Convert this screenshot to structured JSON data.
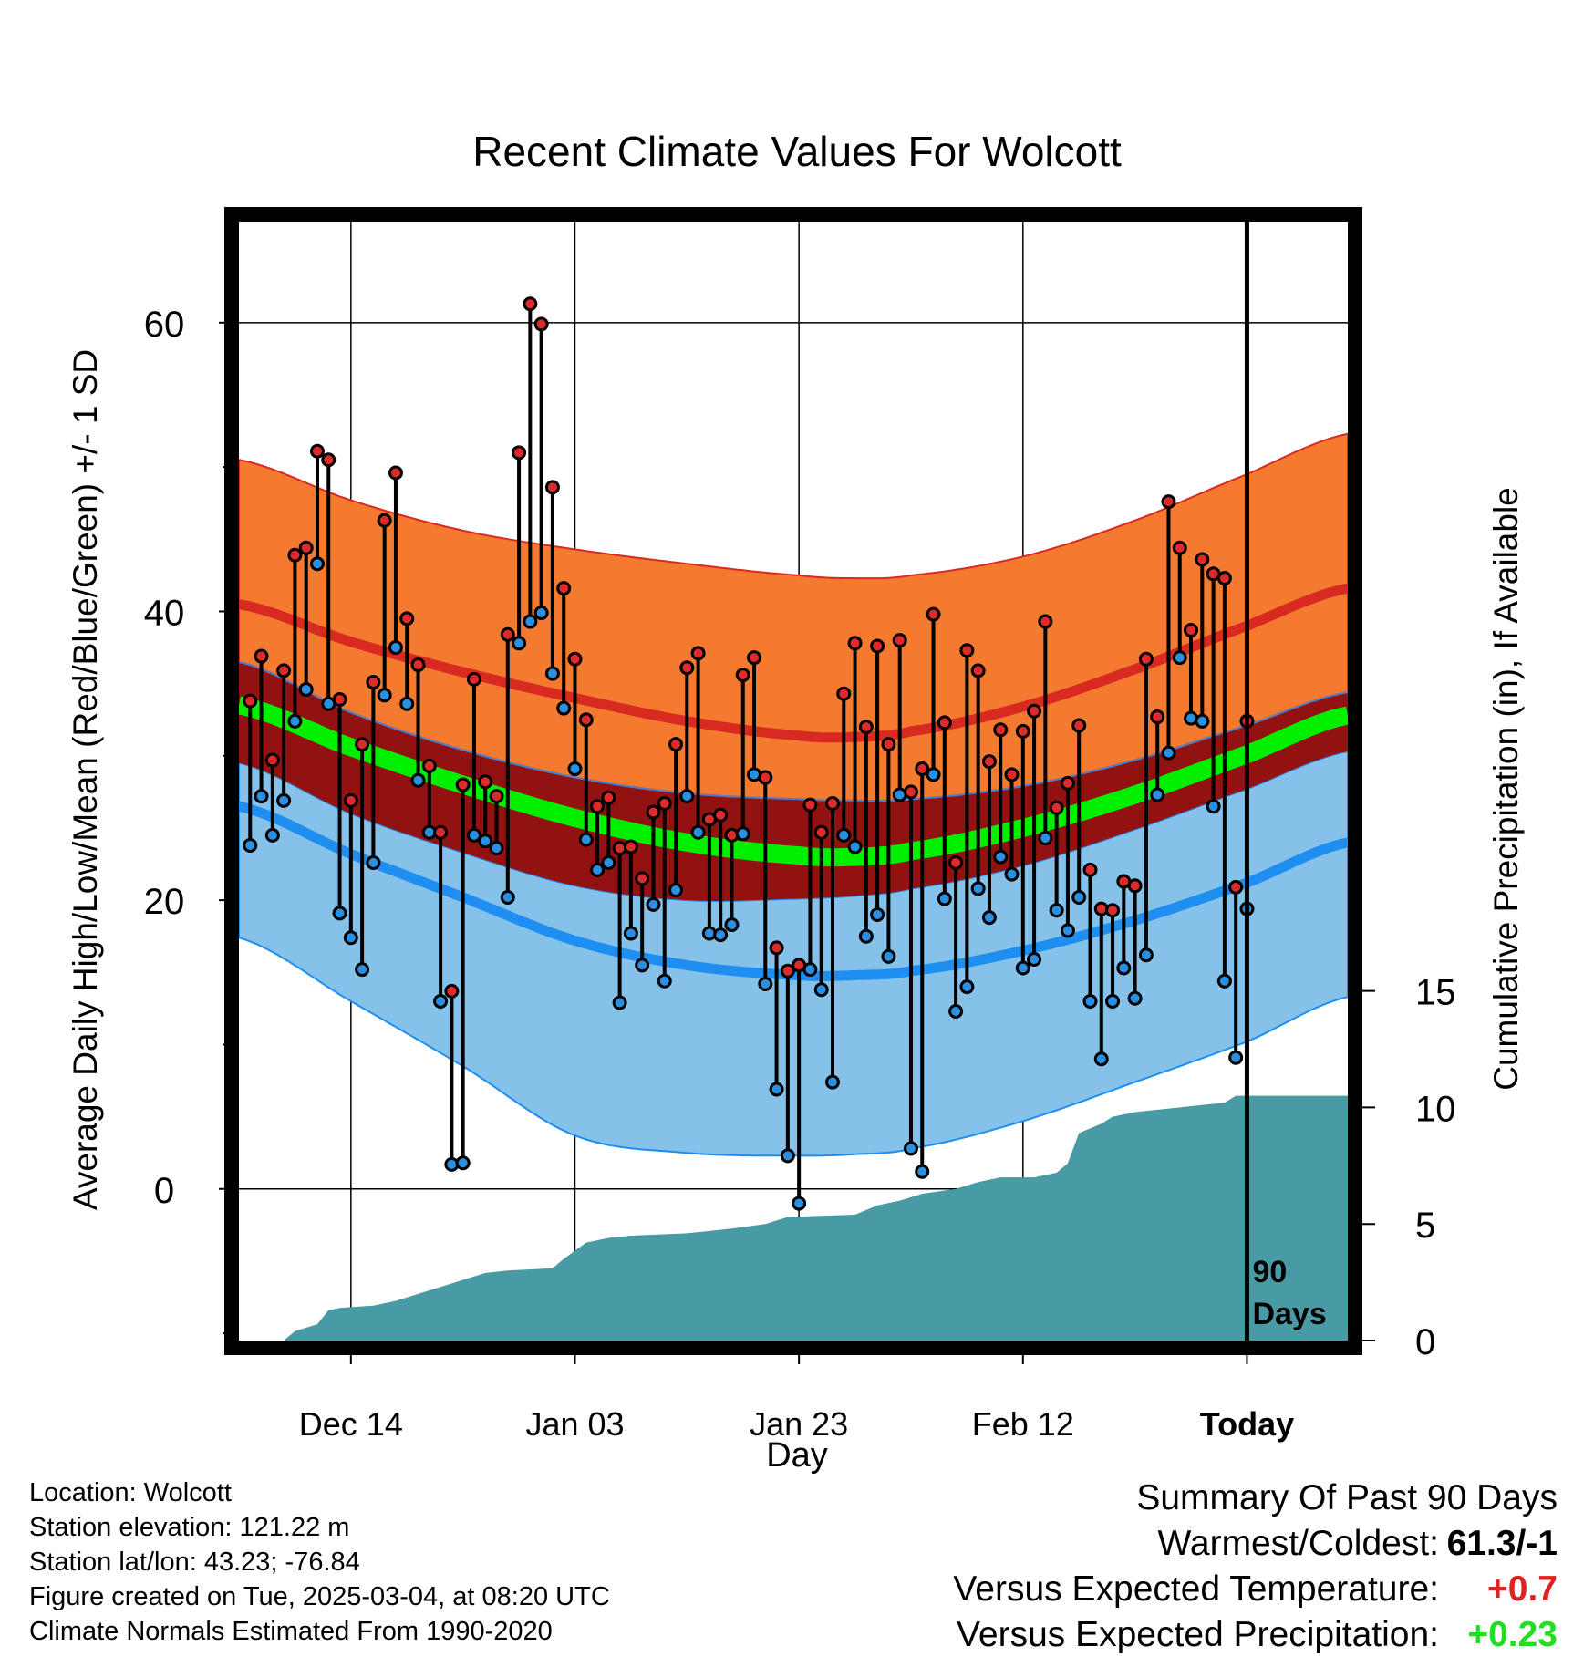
{
  "chart_data": {
    "type": "line",
    "title": "Recent Climate Values For Wolcott",
    "xlabel": "Day",
    "ylabel": "Average Daily High/Low/Mean (Red/Blue/Green) +/- 1 SD",
    "y2label": "Cumulative Precipitation (in), If Available",
    "x_range_days": [
      -90,
      9
    ],
    "ylim": [
      -10.5,
      67
    ],
    "y2lim": [
      0,
      48
    ],
    "x_ticks": [
      {
        "day": -80,
        "label": "Dec 14"
      },
      {
        "day": -60,
        "label": "Jan 03"
      },
      {
        "day": -40,
        "label": "Jan 23"
      },
      {
        "day": -20,
        "label": "Feb 12"
      },
      {
        "day": 0,
        "label": "Today"
      }
    ],
    "y_ticks": [
      0,
      20,
      40,
      60
    ],
    "y_minor_ticks": [
      -10,
      10,
      30,
      50
    ],
    "y2_ticks": [
      0,
      5,
      10,
      15
    ],
    "today_label": "90\nDays",
    "colors": {
      "high_obs": "#dd2a2a",
      "low_obs": "#2a8fe0",
      "high_band": "#f47a30",
      "high_line": "#d92a22",
      "low_band": "#85c1e8",
      "low_line": "#1e8ff0",
      "mean_band": "#921212",
      "mean_line": "#00ee00",
      "precip": "#489aa4"
    },
    "normals": {
      "day": [
        -90,
        -80,
        -70,
        -60,
        -50,
        -40,
        -35,
        -30,
        -20,
        -10,
        0,
        9
      ],
      "high_mean": [
        40.5,
        37.9,
        35.8,
        34.0,
        32.4,
        31.4,
        31.3,
        31.7,
        33.4,
        36.0,
        39.0,
        41.6
      ],
      "high_upper": [
        50.5,
        47.7,
        45.6,
        44.3,
        43.3,
        42.5,
        42.3,
        42.5,
        43.8,
        46.3,
        49.5,
        52.3
      ],
      "high_lower": [
        36.5,
        33.0,
        30.4,
        28.5,
        27.4,
        27.0,
        26.9,
        27.0,
        27.9,
        29.7,
        32.1,
        34.4
      ],
      "low_mean": [
        26.5,
        23.2,
        20.2,
        17.2,
        15.5,
        14.8,
        14.8,
        15.1,
        16.5,
        18.6,
        21.2,
        24.0
      ],
      "low_upper": [
        29.5,
        26.0,
        23.3,
        21.0,
        20.0,
        20.1,
        20.3,
        20.8,
        22.4,
        24.9,
        27.7,
        30.3
      ],
      "low_lower": [
        17.4,
        13.0,
        8.5,
        3.7,
        2.5,
        2.3,
        2.4,
        2.8,
        4.7,
        7.4,
        10.2,
        13.3
      ],
      "mean_mean": [
        33.5,
        30.6,
        28.0,
        25.7,
        24.0,
        23.1,
        23.0,
        23.4,
        25.0,
        27.3,
        30.1,
        32.8
      ]
    },
    "daily": {
      "start_day": -89,
      "high": [
        33.8,
        36.9,
        29.7,
        35.9,
        43.9,
        44.4,
        51.1,
        50.5,
        33.9,
        26.9,
        30.8,
        35.1,
        46.3,
        49.6,
        39.5,
        36.3,
        29.3,
        24.7,
        13.7,
        28.0,
        35.3,
        28.2,
        27.2,
        38.4,
        51.0,
        61.3,
        59.9,
        48.6,
        41.6,
        36.7,
        32.5,
        26.5,
        27.1,
        23.6,
        23.7,
        21.5,
        26.1,
        26.7,
        30.8,
        36.1,
        37.1,
        25.6,
        25.9,
        24.5,
        35.6,
        36.8,
        28.5,
        16.7,
        15.1,
        15.5,
        26.6,
        24.7,
        26.7,
        34.3,
        37.8,
        32.0,
        37.6,
        30.8,
        38.0,
        27.5,
        29.1,
        39.8,
        32.3,
        22.6,
        37.3,
        35.9,
        29.6,
        31.8,
        28.7,
        31.7,
        33.1,
        39.3,
        26.4,
        28.1,
        32.1,
        22.1,
        19.4,
        19.3,
        21.3,
        21.0,
        36.7,
        32.7,
        47.6,
        44.4,
        38.7,
        43.6,
        42.6,
        42.3,
        20.9,
        32.4
      ],
      "low": [
        23.8,
        27.2,
        24.5,
        26.9,
        32.4,
        34.6,
        43.3,
        33.6,
        19.1,
        17.4,
        15.2,
        22.6,
        34.2,
        37.5,
        33.6,
        28.3,
        24.7,
        13.0,
        1.7,
        1.8,
        24.5,
        24.1,
        23.6,
        20.2,
        37.8,
        39.3,
        39.9,
        35.7,
        33.3,
        29.1,
        24.2,
        22.1,
        22.6,
        12.9,
        17.7,
        15.5,
        19.7,
        14.4,
        20.7,
        27.2,
        24.7,
        17.7,
        17.6,
        18.3,
        24.6,
        28.7,
        14.2,
        6.9,
        2.3,
        -1.0,
        15.2,
        13.8,
        7.4,
        24.5,
        23.7,
        17.5,
        19.0,
        16.1,
        27.3,
        2.8,
        1.2,
        28.7,
        20.1,
        12.3,
        14.0,
        20.8,
        18.8,
        23.0,
        21.8,
        15.3,
        15.9,
        24.3,
        19.3,
        17.9,
        20.2,
        13.0,
        9.0,
        13.0,
        15.3,
        13.2,
        16.2,
        27.3,
        30.2,
        36.8,
        32.6,
        32.4,
        26.5,
        14.4,
        9.1,
        19.4
      ]
    },
    "precip_cumulative": [
      [
        -90,
        0
      ],
      [
        -86,
        0
      ],
      [
        -85,
        0.4
      ],
      [
        -83,
        0.7
      ],
      [
        -82,
        1.3
      ],
      [
        -81,
        1.4
      ],
      [
        -78,
        1.5
      ],
      [
        -76,
        1.7
      ],
      [
        -74,
        2.0
      ],
      [
        -72,
        2.3
      ],
      [
        -70,
        2.6
      ],
      [
        -68,
        2.9
      ],
      [
        -66,
        3.0
      ],
      [
        -62,
        3.1
      ],
      [
        -61,
        3.5
      ],
      [
        -59,
        4.2
      ],
      [
        -57,
        4.4
      ],
      [
        -55,
        4.5
      ],
      [
        -50,
        4.6
      ],
      [
        -48,
        4.7
      ],
      [
        -46,
        4.8
      ],
      [
        -43,
        5.0
      ],
      [
        -41,
        5.3
      ],
      [
        -35,
        5.4
      ],
      [
        -33,
        5.8
      ],
      [
        -31,
        6.0
      ],
      [
        -29,
        6.3
      ],
      [
        -26,
        6.5
      ],
      [
        -24,
        6.8
      ],
      [
        -22,
        7.0
      ],
      [
        -19,
        7.0
      ],
      [
        -17,
        7.2
      ],
      [
        -16,
        7.6
      ],
      [
        -15,
        8.9
      ],
      [
        -14,
        9.1
      ],
      [
        -13,
        9.3
      ],
      [
        -12,
        9.6
      ],
      [
        -10,
        9.8
      ],
      [
        -8,
        9.9
      ],
      [
        -6,
        10.0
      ],
      [
        -4,
        10.1
      ],
      [
        -2,
        10.2
      ],
      [
        -1,
        10.5
      ],
      [
        1,
        10.5
      ],
      [
        9,
        10.5
      ]
    ]
  },
  "summary": {
    "title": "Summary Of Past 90 Days",
    "rows": [
      {
        "label": "Warmest/Coldest:",
        "value": "61.3/-1",
        "color": "#000000"
      },
      {
        "label": "Versus Expected Temperature:",
        "value": "+0.7",
        "color": "#dd2222"
      },
      {
        "label": "Versus Expected Precipitation:",
        "value": "+0.23",
        "color": "#22dd22"
      }
    ]
  },
  "station_info": [
    "Location: Wolcott",
    "Station elevation: 121.22 m",
    "Station lat/lon: 43.23; -76.84",
    "Figure created on Tue, 2025-03-04, at 08:20 UTC",
    "Climate Normals Estimated From 1990-2020"
  ]
}
